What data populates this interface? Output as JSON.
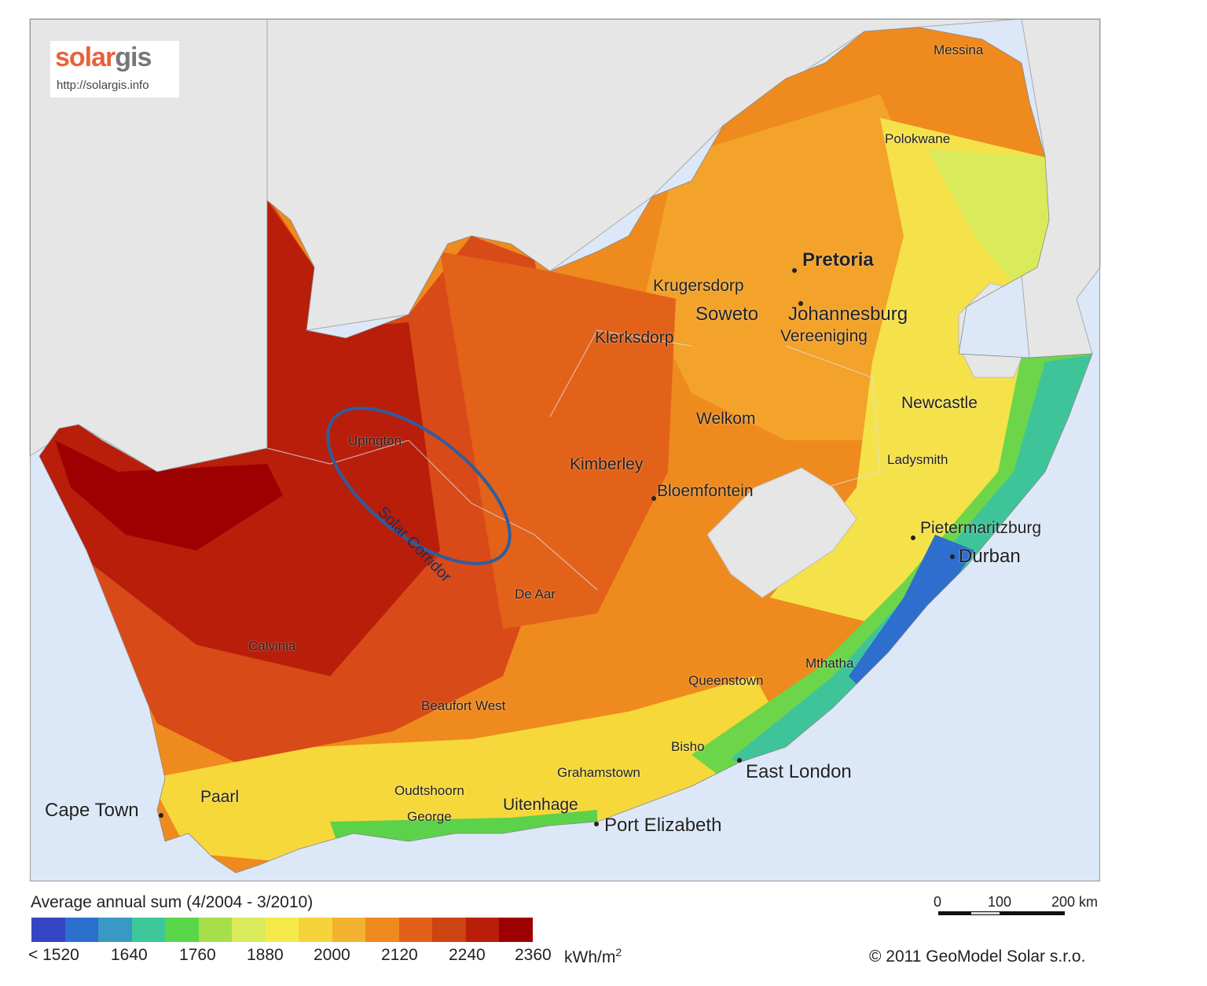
{
  "logo": {
    "brand_part1": "solar",
    "brand_part2": "gis",
    "url": "http://solargis.info"
  },
  "annotation": "Solar Corridor",
  "cities": {
    "messina": "Messina",
    "polokwane": "Polokwane",
    "pretoria": "Pretoria",
    "krugersdorp": "Krugersdorp",
    "soweto": "Soweto",
    "johannesburg": "Johannesburg",
    "klerksdorp": "Klerksdorp",
    "vereeniging": "Vereeniging",
    "newcastle": "Newcastle",
    "welkom": "Welkom",
    "upington": "Upington",
    "kimberley": "Kimberley",
    "ladysmith": "Ladysmith",
    "bloemfontein": "Bloemfontein",
    "pietermaritzburg": "Pietermaritzburg",
    "durban": "Durban",
    "de_aar": "De Aar",
    "calvinia": "Calvinia",
    "mthatha": "Mthatha",
    "queenstown": "Queenstown",
    "beaufort_west": "Beaufort West",
    "bisho": "Bisho",
    "east_london": "East London",
    "grahamstown": "Grahamstown",
    "oudtshoorn": "Oudtshoorn",
    "paarl": "Paarl",
    "cape_town": "Cape Town",
    "uitenhage": "Uitenhage",
    "george": "George",
    "port_elizabeth": "Port Elizabeth"
  },
  "legend": {
    "title": "Average annual sum (4/2004 - 3/2010)",
    "colors": [
      "#3546c4",
      "#2a6fcc",
      "#3a98c4",
      "#3dc79a",
      "#59d64a",
      "#a6df4a",
      "#d9ea5a",
      "#f5ea4a",
      "#f5d33a",
      "#f3b22f",
      "#ee8a1e",
      "#e2611a",
      "#cc4411",
      "#b91e0b",
      "#9d0000"
    ],
    "ticks": [
      "< 1520",
      "1640",
      "1760",
      "1880",
      "2000",
      "2120",
      "2240",
      "2360"
    ],
    "unit": "kWh/m",
    "unit_sup": "2"
  },
  "scale": {
    "labels": [
      "0",
      "100",
      "200 km"
    ]
  },
  "copyright": "© 2011 GeoModel Solar s.r.o."
}
